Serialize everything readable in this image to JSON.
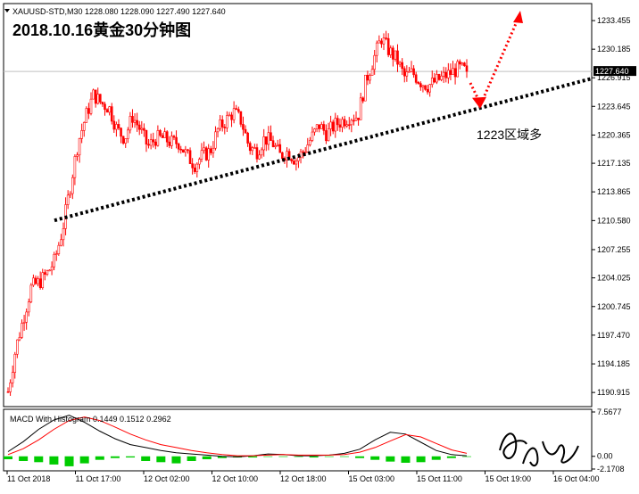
{
  "header": {
    "symbol_info": "XAUUSD-STD,M30  1228.080 1228.090 1227.490 1227.640",
    "big_title": "2018.10.16黄金30分钟图",
    "annotation": "1223区域多",
    "macd_info": "MACD With Histogram 0.1449 0.1512 0.2962",
    "current_price": "1227.640"
  },
  "colors": {
    "bull": "#ffffff",
    "bear": "#ff0000",
    "wick": "#ff0000",
    "trendline": "#000000",
    "arrow": "#ff0000",
    "macd_line": "#000000",
    "signal_line": "#ff0000",
    "histogram": "#00cc00"
  },
  "chart_data": [
    {
      "type": "candlestick",
      "title": "",
      "ylim": [
        1189.5,
        1235.2
      ],
      "y_ticks": [
        "1233.455",
        "1230.185",
        "1226.915",
        "1223.645",
        "1220.365",
        "1217.135",
        "1213.865",
        "1210.580",
        "1207.255",
        "1204.025",
        "1200.745",
        "1197.470",
        "1194.185",
        "1190.915"
      ],
      "x_ticks": [
        "11 Oct 2018",
        "11 Oct 17:00",
        "12 Oct 02:00",
        "12 Oct 10:00",
        "12 Oct 18:00",
        "15 Oct 03:00",
        "15 Oct 11:00",
        "15 Oct 19:00",
        "16 Oct 04:00"
      ],
      "last_price": 1227.64,
      "price_path": [
        1191.0,
        1196.0,
        1199.5,
        1203.0,
        1203.5,
        1204.5,
        1206.0,
        1209.5,
        1214.5,
        1219.5,
        1222.5,
        1225.0,
        1224.0,
        1223.5,
        1221.0,
        1220.0,
        1222.5,
        1221.0,
        1219.0,
        1220.0,
        1220.0,
        1219.5,
        1219.5,
        1218.0,
        1217.0,
        1218.0,
        1218.5,
        1221.0,
        1222.0,
        1223.0,
        1222.0,
        1219.0,
        1218.5,
        1220.0,
        1219.5,
        1218.0,
        1218.5,
        1217.5,
        1218.5,
        1220.0,
        1221.5,
        1220.5,
        1221.5,
        1222.0,
        1222.5,
        1222.5,
        1226.5,
        1229.0,
        1231.5,
        1230.0,
        1229.0,
        1227.0,
        1227.5,
        1226.5,
        1226.0,
        1226.5,
        1227.0,
        1227.5,
        1228.0,
        1227.64
      ],
      "trendline": {
        "from": [
          "11 Oct 2018 16:00",
          1210.6
        ],
        "to": [
          "16 Oct 2018 12:00",
          1226.8
        ]
      },
      "annotation_target": 1223.6
    },
    {
      "type": "line",
      "title": "MACD With Histogram",
      "ylim": [
        -2.1708,
        7.5677
      ],
      "y_ticks": [
        "7.5677",
        "0.00",
        "-2.1708"
      ],
      "series": [
        {
          "name": "MACD",
          "values": [
            0.8,
            2.5,
            4.6,
            6.2,
            7.0,
            5.8,
            4.3,
            3.0,
            2.0,
            1.5,
            1.0,
            0.6,
            0.4,
            0.2,
            0.0,
            -0.1,
            0.1,
            0.4,
            0.3,
            0.1,
            0.1,
            0.2,
            0.5,
            1.2,
            2.8,
            4.1,
            3.8,
            2.4,
            1.0,
            0.3,
            0.1
          ]
        },
        {
          "name": "Signal",
          "values": [
            0.3,
            1.3,
            2.8,
            4.6,
            6.1,
            6.7,
            6.1,
            5.0,
            3.8,
            2.8,
            2.0,
            1.5,
            1.0,
            0.6,
            0.3,
            0.1,
            0.1,
            0.2,
            0.3,
            0.2,
            0.2,
            0.2,
            0.3,
            0.7,
            1.5,
            2.6,
            3.7,
            3.3,
            2.2,
            1.1,
            0.5
          ]
        },
        {
          "name": "Histogram",
          "values": [
            -0.5,
            -0.8,
            -1.0,
            -1.4,
            -1.7,
            -1.2,
            -0.6,
            -0.3,
            -0.2,
            -0.8,
            -1.0,
            -1.2,
            -0.8,
            -0.5,
            -0.3,
            -0.2,
            -0.2,
            -0.1,
            -0.1,
            -0.1,
            -0.2,
            -0.1,
            -0.1,
            -0.3,
            -0.6,
            -0.9,
            -1.1,
            -1.0,
            -0.6,
            -0.3,
            -0.1
          ]
        }
      ]
    }
  ]
}
